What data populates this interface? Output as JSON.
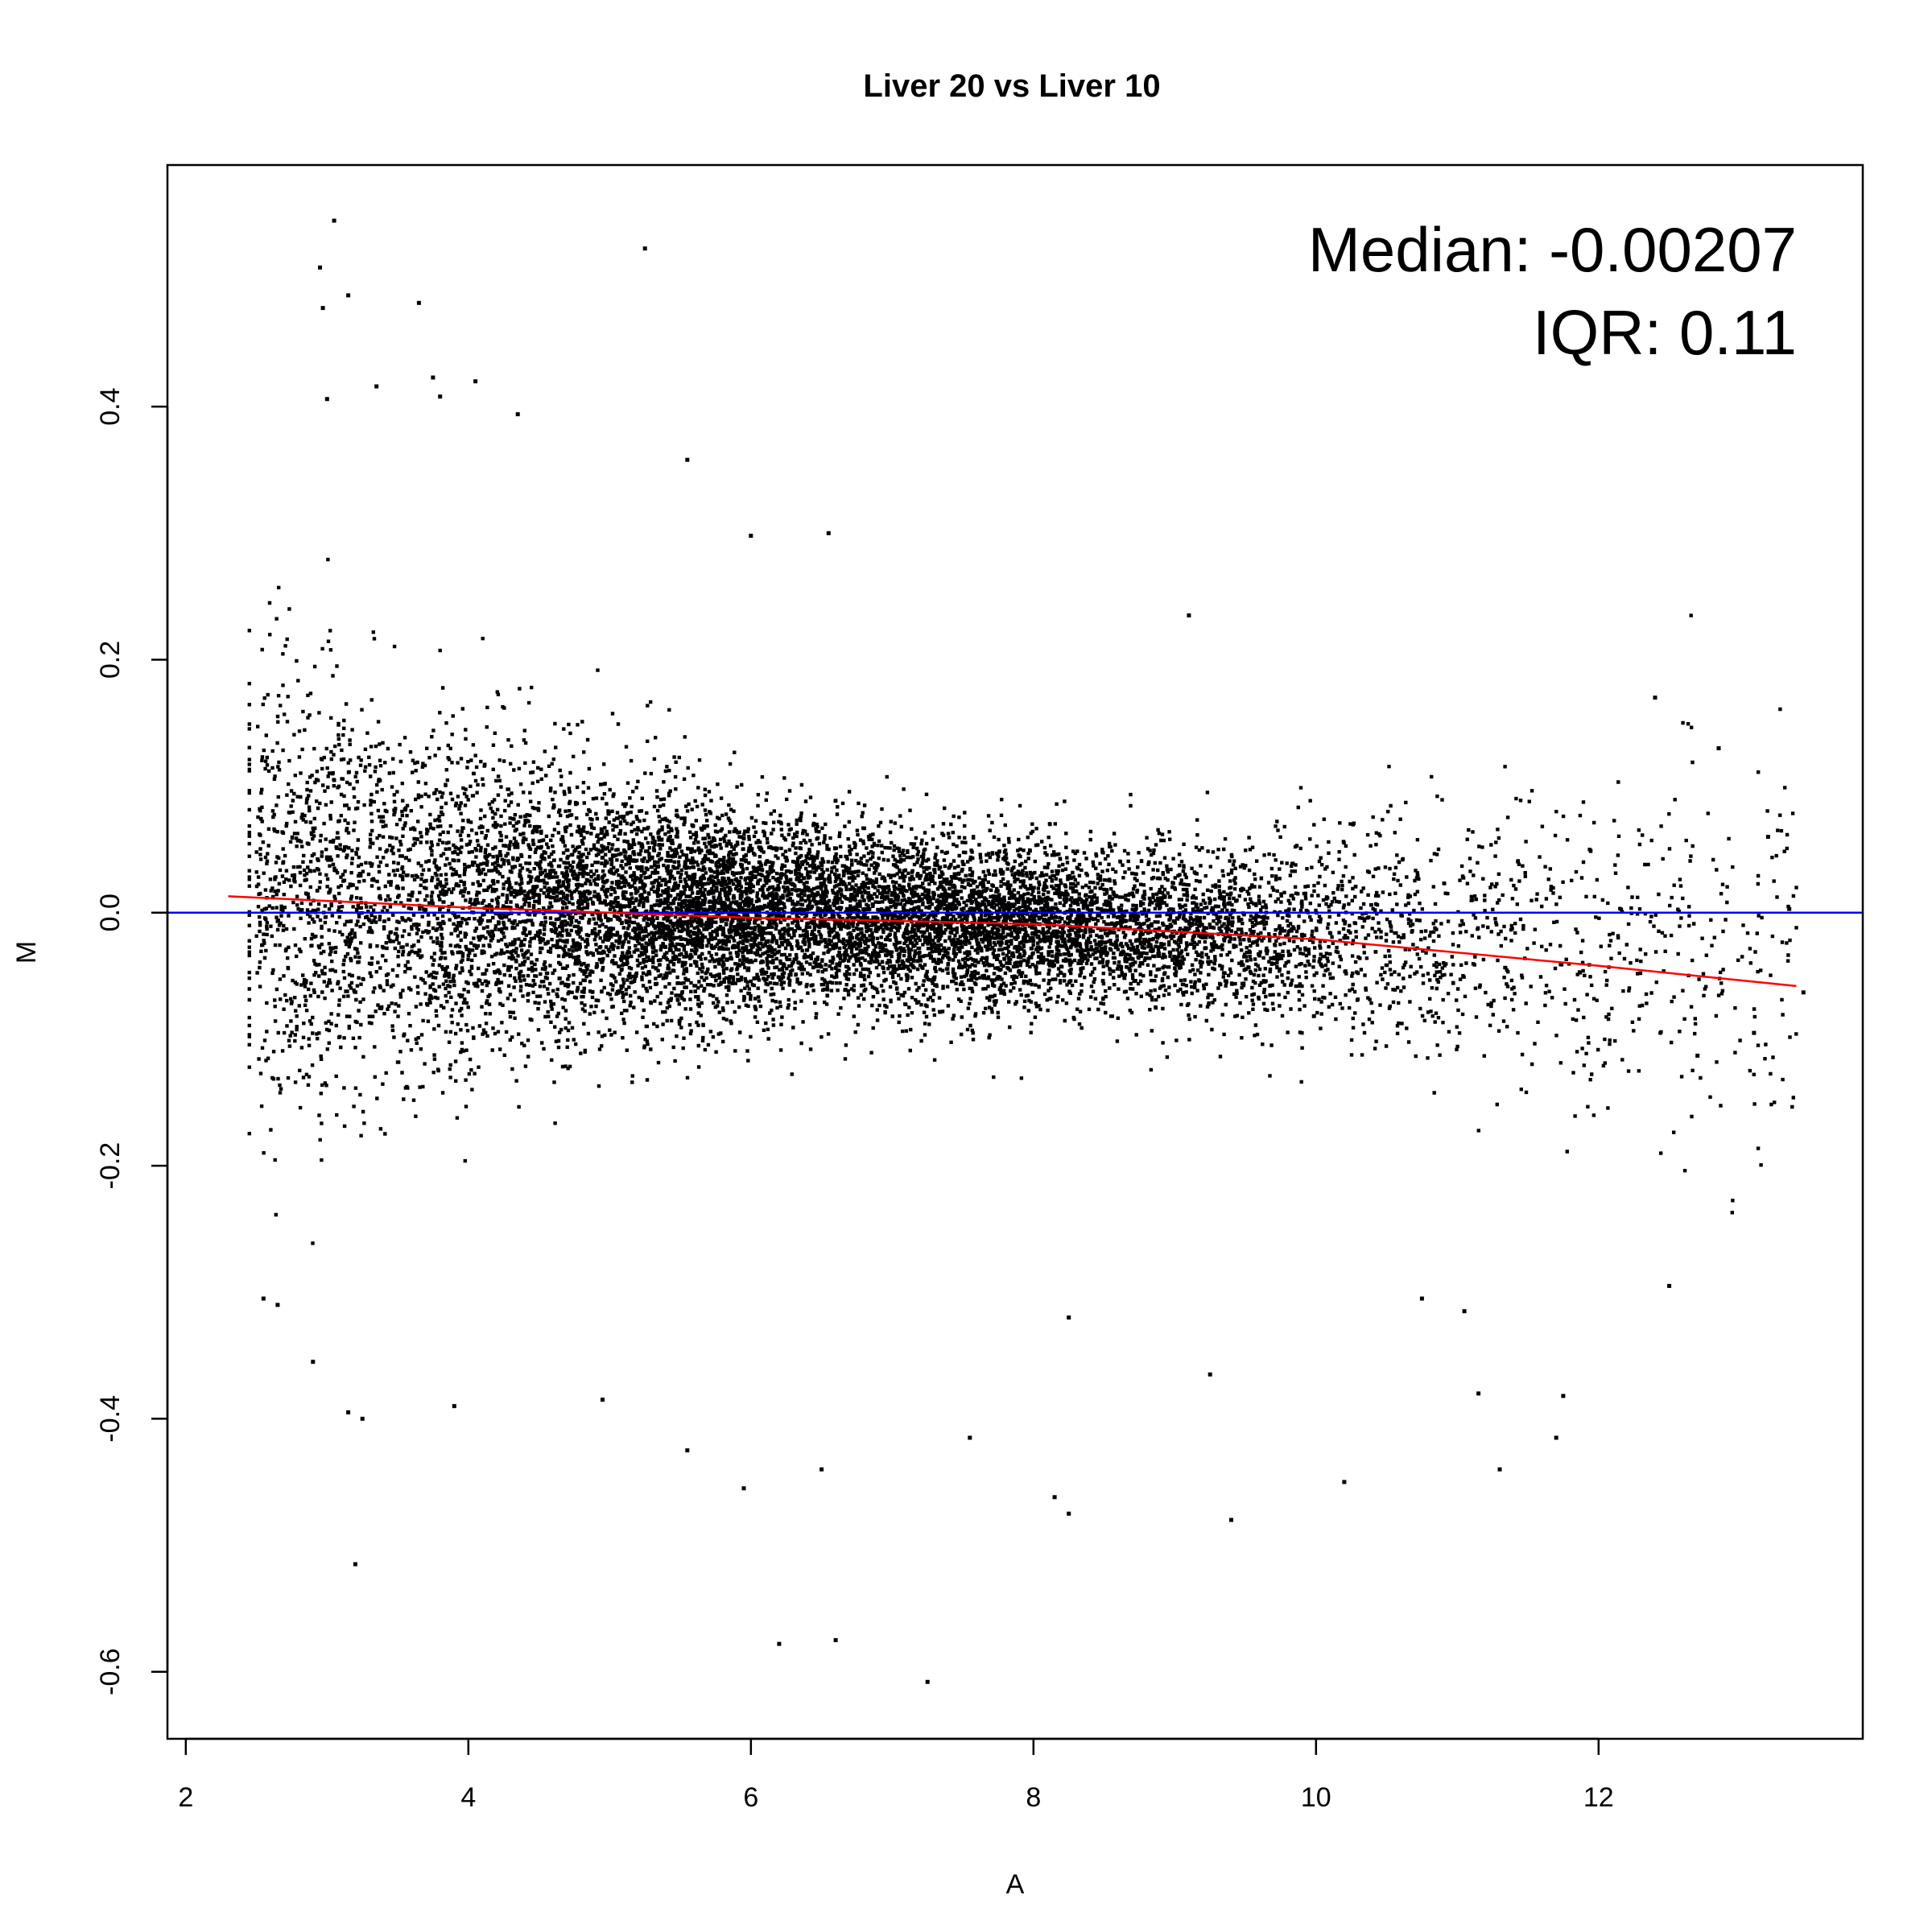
{
  "chart_data": {
    "type": "scatter",
    "title": "Liver 20 vs Liver 10",
    "xlabel": "A",
    "ylabel": "M",
    "xlim": [
      1.87,
      13.87
    ],
    "ylim": [
      -0.653,
      0.591
    ],
    "x_ticks": [
      2,
      4,
      6,
      8,
      10,
      12
    ],
    "y_ticks": [
      -0.6,
      -0.4,
      -0.2,
      0.0,
      0.2,
      0.4
    ],
    "x_tick_labels": [
      "2",
      "4",
      "6",
      "8",
      "10",
      "12"
    ],
    "y_tick_labels": [
      "-0.6",
      "-0.4",
      "-0.2",
      "0.0",
      "0.2",
      "0.4"
    ],
    "grid": false,
    "legend": "none",
    "annotations": [
      "Median: -0.00207",
      "IQR: 0.11"
    ],
    "reference_line": {
      "y": 0.0,
      "color": "#0000ff"
    },
    "fit_line": {
      "color": "#ff0000",
      "x": [
        2.3,
        4.0,
        6.0,
        8.0,
        10.0,
        12.0,
        13.4
      ],
      "y": [
        0.013,
        0.004,
        -0.004,
        -0.009,
        -0.021,
        -0.042,
        -0.058
      ]
    },
    "point_color": "#000000",
    "outliers": [
      {
        "x": 3.05,
        "y": 0.547
      },
      {
        "x": 5.25,
        "y": 0.525
      },
      {
        "x": 2.95,
        "y": 0.51
      },
      {
        "x": 3.15,
        "y": 0.488
      },
      {
        "x": 2.97,
        "y": 0.478
      },
      {
        "x": 3.65,
        "y": 0.482
      },
      {
        "x": 3.75,
        "y": 0.423
      },
      {
        "x": 4.05,
        "y": 0.42
      },
      {
        "x": 3.35,
        "y": 0.416
      },
      {
        "x": 3.0,
        "y": 0.406
      },
      {
        "x": 3.8,
        "y": 0.408
      },
      {
        "x": 4.35,
        "y": 0.394
      },
      {
        "x": 5.55,
        "y": 0.358
      },
      {
        "x": 6.55,
        "y": 0.3
      },
      {
        "x": 6.0,
        "y": 0.298
      },
      {
        "x": 9.1,
        "y": 0.235
      },
      {
        "x": 12.4,
        "y": 0.17
      },
      {
        "x": 12.85,
        "y": 0.13
      },
      {
        "x": 13.2,
        "y": 0.06
      },
      {
        "x": 13.35,
        "y": 0.003
      },
      {
        "x": 13.45,
        "y": -0.063
      },
      {
        "x": 13.1,
        "y": -0.095
      },
      {
        "x": 12.7,
        "y": -0.113
      },
      {
        "x": 12.5,
        "y": -0.295
      },
      {
        "x": 3.2,
        "y": -0.515
      },
      {
        "x": 6.2,
        "y": -0.578
      },
      {
        "x": 6.6,
        "y": -0.575
      },
      {
        "x": 7.25,
        "y": -0.608
      },
      {
        "x": 5.95,
        "y": -0.455
      },
      {
        "x": 6.5,
        "y": -0.44
      },
      {
        "x": 5.55,
        "y": -0.425
      },
      {
        "x": 7.55,
        "y": -0.415
      },
      {
        "x": 8.15,
        "y": -0.462
      },
      {
        "x": 8.25,
        "y": -0.475
      },
      {
        "x": 9.4,
        "y": -0.48
      },
      {
        "x": 10.2,
        "y": -0.45
      },
      {
        "x": 11.3,
        "y": -0.44
      },
      {
        "x": 11.7,
        "y": -0.415
      },
      {
        "x": 11.75,
        "y": -0.382
      },
      {
        "x": 11.15,
        "y": -0.38
      },
      {
        "x": 3.9,
        "y": -0.39
      },
      {
        "x": 4.95,
        "y": -0.385
      },
      {
        "x": 3.15,
        "y": -0.395
      },
      {
        "x": 3.25,
        "y": -0.4
      },
      {
        "x": 9.25,
        "y": -0.365
      },
      {
        "x": 11.05,
        "y": -0.315
      },
      {
        "x": 10.75,
        "y": -0.305
      },
      {
        "x": 8.25,
        "y": -0.32
      },
      {
        "x": 2.55,
        "y": -0.305
      },
      {
        "x": 2.65,
        "y": -0.31
      },
      {
        "x": 2.9,
        "y": -0.355
      }
    ]
  }
}
